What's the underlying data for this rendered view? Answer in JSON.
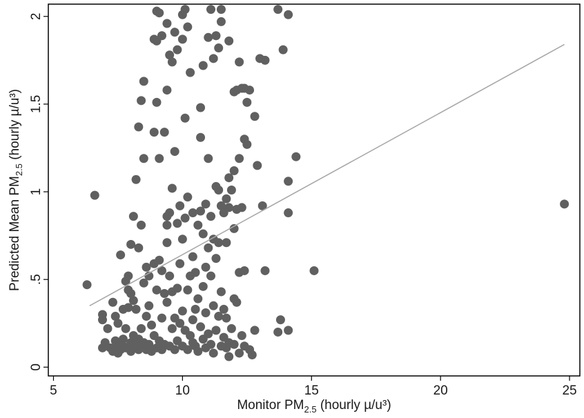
{
  "chart_data": {
    "type": "scatter",
    "title": "",
    "xlabel": {
      "main": "Monitor PM",
      "sub": "2.5",
      "tail": " (hourly µ/u³)"
    },
    "ylabel": {
      "main": "Predicted Mean PM",
      "sub": "2.5",
      "tail": " (hourly µ/u³)"
    },
    "xlim": [
      4.8,
      25.4
    ],
    "ylim": [
      -0.05,
      2.07
    ],
    "x_ticks": [
      5,
      10,
      15,
      20,
      25
    ],
    "x_tick_labels": [
      "5",
      "10",
      "15",
      "20",
      "25"
    ],
    "y_ticks": [
      0,
      0.5,
      1,
      1.5,
      2
    ],
    "y_tick_labels": [
      "0",
      ".5",
      "1",
      "1.5",
      "2"
    ],
    "grid": false,
    "legend": "none",
    "colors": {
      "points": "#606060",
      "fit_line": "#a8a8a8",
      "axes": "#000000"
    },
    "series": [
      {
        "kind": "points",
        "points": [
          [
            6.3,
            0.47
          ],
          [
            6.6,
            0.98
          ],
          [
            6.9,
            0.27
          ],
          [
            6.9,
            0.3
          ],
          [
            6.9,
            0.11
          ],
          [
            7.0,
            0.14
          ],
          [
            7.1,
            0.22
          ],
          [
            7.2,
            0.11
          ],
          [
            7.3,
            0.37
          ],
          [
            7.3,
            0.09
          ],
          [
            7.4,
            0.15
          ],
          [
            7.4,
            0.29
          ],
          [
            7.5,
            0.25
          ],
          [
            7.5,
            0.13
          ],
          [
            7.5,
            0.08
          ],
          [
            7.6,
            0.64
          ],
          [
            7.6,
            0.1
          ],
          [
            7.7,
            0.33
          ],
          [
            7.7,
            0.16
          ],
          [
            7.7,
            0.12
          ],
          [
            7.8,
            0.49
          ],
          [
            7.8,
            0.22
          ],
          [
            7.8,
            0.11
          ],
          [
            7.9,
            0.52
          ],
          [
            7.9,
            0.44
          ],
          [
            7.9,
            0.34
          ],
          [
            7.9,
            0.11
          ],
          [
            8.0,
            0.7
          ],
          [
            8.0,
            0.42
          ],
          [
            8.0,
            0.14
          ],
          [
            8.0,
            0.09
          ],
          [
            8.1,
            0.86
          ],
          [
            8.1,
            0.38
          ],
          [
            8.1,
            0.18
          ],
          [
            8.1,
            0.11
          ],
          [
            8.2,
            1.07
          ],
          [
            8.2,
            0.33
          ],
          [
            8.2,
            0.13
          ],
          [
            8.3,
            1.37
          ],
          [
            8.3,
            0.68
          ],
          [
            8.3,
            0.16
          ],
          [
            8.3,
            0.1
          ],
          [
            8.4,
            1.52
          ],
          [
            8.4,
            0.81
          ],
          [
            8.4,
            0.22
          ],
          [
            8.4,
            0.12
          ],
          [
            8.5,
            1.63
          ],
          [
            8.5,
            1.19
          ],
          [
            8.5,
            0.48
          ],
          [
            8.5,
            0.14
          ],
          [
            8.6,
            0.57
          ],
          [
            8.6,
            0.29
          ],
          [
            8.6,
            0.1
          ],
          [
            8.7,
            0.52
          ],
          [
            8.7,
            0.35
          ],
          [
            8.7,
            0.13
          ],
          [
            8.8,
            0.24
          ],
          [
            8.8,
            0.09
          ],
          [
            8.9,
            1.87
          ],
          [
            8.9,
            1.34
          ],
          [
            8.9,
            0.59
          ],
          [
            8.9,
            0.18
          ],
          [
            9.0,
            2.03
          ],
          [
            9.0,
            1.86
          ],
          [
            9.0,
            1.51
          ],
          [
            9.0,
            0.44
          ],
          [
            9.0,
            0.11
          ],
          [
            9.1,
            2.02
          ],
          [
            9.1,
            1.19
          ],
          [
            9.1,
            0.61
          ],
          [
            9.1,
            0.15
          ],
          [
            9.2,
            1.89
          ],
          [
            9.2,
            0.55
          ],
          [
            9.2,
            0.28
          ],
          [
            9.2,
            0.1
          ],
          [
            9.3,
            1.34
          ],
          [
            9.3,
            0.42
          ],
          [
            9.3,
            0.13
          ],
          [
            9.4,
            1.96
          ],
          [
            9.4,
            1.58
          ],
          [
            9.4,
            0.86
          ],
          [
            9.4,
            0.81
          ],
          [
            9.4,
            0.71
          ],
          [
            9.4,
            0.37
          ],
          [
            9.5,
            1.78
          ],
          [
            9.5,
            0.88
          ],
          [
            9.5,
            0.52
          ],
          [
            9.5,
            0.12
          ],
          [
            9.6,
            1.74
          ],
          [
            9.6,
            1.02
          ],
          [
            9.6,
            0.43
          ],
          [
            9.6,
            0.22
          ],
          [
            9.7,
            1.91
          ],
          [
            9.7,
            1.23
          ],
          [
            9.7,
            0.28
          ],
          [
            9.7,
            0.1
          ],
          [
            9.8,
            1.81
          ],
          [
            9.8,
            0.82
          ],
          [
            9.8,
            0.45
          ],
          [
            9.8,
            0.15
          ],
          [
            9.9,
            0.92
          ],
          [
            9.9,
            0.59
          ],
          [
            9.9,
            0.25
          ],
          [
            10.0,
            2.01
          ],
          [
            10.0,
            1.87
          ],
          [
            10.0,
            0.73
          ],
          [
            10.0,
            0.32
          ],
          [
            10.0,
            0.12
          ],
          [
            10.1,
            2.04
          ],
          [
            10.1,
            1.42
          ],
          [
            10.1,
            0.85
          ],
          [
            10.1,
            0.21
          ],
          [
            10.2,
            1.94
          ],
          [
            10.2,
            0.97
          ],
          [
            10.2,
            0.44
          ],
          [
            10.2,
            0.1
          ],
          [
            10.3,
            1.68
          ],
          [
            10.3,
            0.52
          ],
          [
            10.3,
            0.18
          ],
          [
            10.4,
            0.88
          ],
          [
            10.4,
            0.63
          ],
          [
            10.4,
            0.27
          ],
          [
            10.4,
            0.14
          ],
          [
            10.5,
            0.54
          ],
          [
            10.5,
            0.33
          ],
          [
            10.5,
            0.12
          ],
          [
            10.6,
            0.81
          ],
          [
            10.6,
            0.39
          ],
          [
            10.6,
            0.09
          ],
          [
            10.7,
            1.48
          ],
          [
            10.7,
            1.31
          ],
          [
            10.7,
            0.89
          ],
          [
            10.7,
            0.23
          ],
          [
            10.8,
            1.72
          ],
          [
            10.8,
            0.76
          ],
          [
            10.8,
            0.46
          ],
          [
            10.8,
            0.16
          ],
          [
            10.9,
            0.93
          ],
          [
            10.9,
            0.57
          ],
          [
            10.9,
            0.31
          ],
          [
            10.9,
            0.11
          ],
          [
            11.0,
            1.88
          ],
          [
            11.0,
            1.19
          ],
          [
            11.0,
            0.68
          ],
          [
            11.0,
            0.19
          ],
          [
            11.1,
            2.04
          ],
          [
            11.1,
            0.86
          ],
          [
            11.1,
            0.52
          ],
          [
            11.1,
            0.13
          ],
          [
            11.2,
            1.76
          ],
          [
            11.2,
            0.73
          ],
          [
            11.2,
            0.35
          ],
          [
            11.2,
            0.08
          ],
          [
            11.3,
            1.89
          ],
          [
            11.3,
            1.03
          ],
          [
            11.3,
            0.62
          ],
          [
            11.3,
            0.21
          ],
          [
            11.4,
            1.82
          ],
          [
            11.4,
            1.01
          ],
          [
            11.4,
            0.71
          ],
          [
            11.4,
            0.29
          ],
          [
            11.5,
            2.04
          ],
          [
            11.5,
            1.97
          ],
          [
            11.5,
            0.92
          ],
          [
            11.5,
            0.43
          ],
          [
            11.5,
            0.12
          ],
          [
            11.6,
            0.88
          ],
          [
            11.6,
            0.33
          ],
          [
            11.6,
            0.17
          ],
          [
            11.7,
            0.96
          ],
          [
            11.7,
            0.71
          ],
          [
            11.7,
            0.28
          ],
          [
            11.7,
            0.11
          ],
          [
            11.8,
            1.86
          ],
          [
            11.8,
            1.08
          ],
          [
            11.8,
            0.91
          ],
          [
            11.8,
            0.14
          ],
          [
            11.8,
            0.06
          ],
          [
            11.9,
            1.01
          ],
          [
            11.9,
            0.22
          ],
          [
            12.0,
            1.57
          ],
          [
            12.0,
            1.12
          ],
          [
            12.0,
            0.79
          ],
          [
            12.0,
            0.39
          ],
          [
            12.0,
            0.13
          ],
          [
            12.1,
            1.58
          ],
          [
            12.1,
            0.9
          ],
          [
            12.1,
            0.37
          ],
          [
            12.2,
            1.74
          ],
          [
            12.2,
            1.19
          ],
          [
            12.2,
            0.54
          ],
          [
            12.2,
            0.08
          ],
          [
            12.3,
            1.59
          ],
          [
            12.3,
            0.91
          ],
          [
            12.3,
            0.18
          ],
          [
            12.4,
            1.59
          ],
          [
            12.4,
            1.3
          ],
          [
            12.4,
            0.55
          ],
          [
            12.4,
            0.12
          ],
          [
            12.5,
            1.51
          ],
          [
            12.5,
            1.27
          ],
          [
            12.6,
            1.58
          ],
          [
            12.6,
            0.1
          ],
          [
            12.7,
            0.07
          ],
          [
            12.8,
            1.43
          ],
          [
            12.8,
            0.21
          ],
          [
            12.9,
            1.15
          ],
          [
            13.0,
            1.76
          ],
          [
            13.1,
            0.92
          ],
          [
            13.2,
            1.75
          ],
          [
            13.2,
            0.55
          ],
          [
            13.7,
            2.04
          ],
          [
            13.7,
            0.2
          ],
          [
            13.8,
            0.27
          ],
          [
            13.9,
            1.81
          ],
          [
            14.1,
            2.01
          ],
          [
            14.1,
            1.06
          ],
          [
            14.1,
            0.88
          ],
          [
            14.1,
            0.21
          ],
          [
            14.4,
            1.2
          ],
          [
            15.1,
            0.55
          ],
          [
            24.8,
            0.93
          ]
        ]
      },
      {
        "kind": "fit_line",
        "points": [
          [
            6.4,
            0.35
          ],
          [
            24.8,
            1.84
          ]
        ]
      }
    ]
  }
}
